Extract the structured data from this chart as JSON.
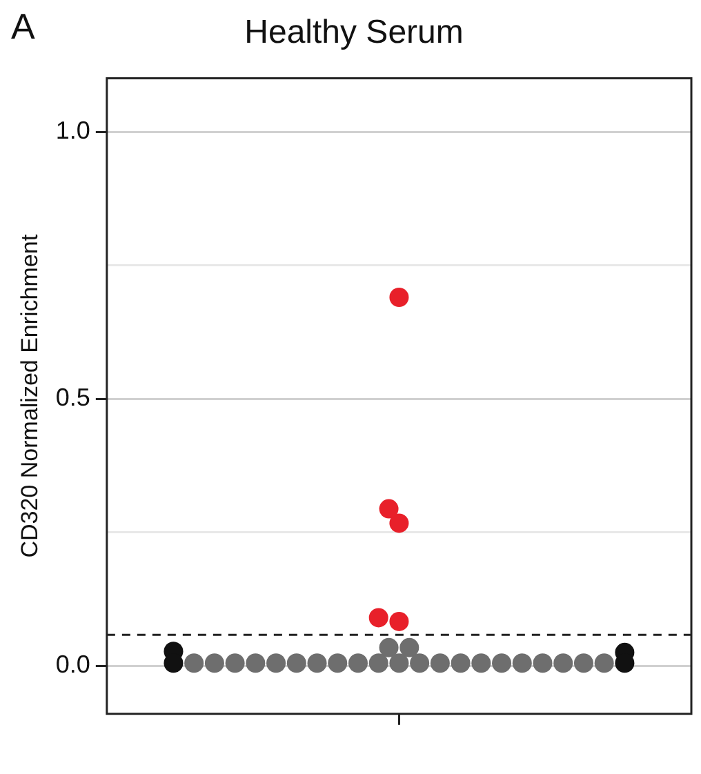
{
  "chart_data": {
    "type": "scatter",
    "title": "Healthy Serum",
    "ylabel": "CD320 Normalized Enrichment",
    "annotations": [
      "A"
    ],
    "categories": [
      null,
      null,
      null,
      null,
      null,
      null,
      null,
      null,
      null,
      null,
      null,
      null,
      null,
      null,
      null,
      null,
      null,
      null,
      null,
      null,
      null,
      null,
      null,
      null,
      null,
      null,
      null,
      null,
      null,
      null,
      null,
      null,
      null,
      null,
      null,
      null,
      null,
      null,
      null,
      null,
      null,
      null,
      null,
      null,
      null,
      null,
      null,
      null,
      null,
      null,
      null,
      null,
      null,
      null,
      null,
      null,
      null
    ],
    "ylim": [
      -0.09,
      1.1
    ],
    "yticks": [
      {
        "value": 0,
        "label": "0.0"
      },
      {
        "value": 0.25,
        "label": null
      },
      {
        "value": 0.5,
        "label": "0.5"
      },
      {
        "value": 0.75,
        "label": null
      },
      {
        "value": 1,
        "label": "1.0"
      }
    ],
    "tick_labels": "y",
    "grid": "y",
    "legend": false,
    "marker": "circle",
    "ref_lines": [
      {
        "axis": "y",
        "value": 0.058,
        "line_style": "dashed",
        "color": "#222222"
      }
    ],
    "series": [
      {
        "color": "#6e6e6e",
        "values": [
          null,
          null,
          null,
          null,
          null,
          null,
          null,
          null,
          0.005,
          null,
          0.005,
          null,
          0.005,
          null,
          0.005,
          null,
          0.005,
          null,
          0.005,
          null,
          0.005,
          null,
          0.005,
          null,
          0.005,
          null,
          0.005,
          0.034,
          0.005,
          0.034,
          0.005,
          null,
          0.005,
          null,
          0.005,
          null,
          0.005,
          null,
          0.005,
          null,
          0.005,
          null,
          0.005,
          null,
          0.005,
          null,
          0.005,
          null,
          0.005,
          null,
          null,
          null,
          null,
          null,
          null,
          null,
          null
        ]
      },
      {
        "color": "#111111",
        "values": [
          null,
          null,
          null,
          null,
          null,
          null,
          0.005,
          null,
          null,
          null,
          null,
          null,
          null,
          null,
          null,
          null,
          null,
          null,
          null,
          null,
          null,
          null,
          null,
          null,
          null,
          null,
          null,
          null,
          null,
          null,
          null,
          null,
          null,
          null,
          null,
          null,
          null,
          null,
          null,
          null,
          null,
          null,
          null,
          null,
          null,
          null,
          null,
          null,
          null,
          null,
          0.005,
          null,
          null,
          null,
          null,
          null,
          null
        ]
      },
      {
        "color": "#111111",
        "values": [
          null,
          null,
          null,
          null,
          null,
          null,
          0.027,
          null,
          null,
          null,
          null,
          null,
          null,
          null,
          null,
          null,
          null,
          null,
          null,
          null,
          null,
          null,
          null,
          null,
          null,
          null,
          null,
          null,
          null,
          null,
          null,
          null,
          null,
          null,
          null,
          null,
          null,
          null,
          null,
          null,
          null,
          null,
          null,
          null,
          null,
          null,
          null,
          null,
          null,
          null,
          0.025,
          null,
          null,
          null,
          null,
          null,
          null
        ]
      },
      {
        "color": "#e8202a",
        "values": [
          null,
          null,
          null,
          null,
          null,
          null,
          null,
          null,
          null,
          null,
          null,
          null,
          null,
          null,
          null,
          null,
          null,
          null,
          null,
          null,
          null,
          null,
          null,
          null,
          null,
          null,
          0.09,
          0.294,
          0.69,
          null,
          null,
          null,
          null,
          null,
          null,
          null,
          null,
          null,
          null,
          null,
          null,
          null,
          null,
          null,
          null,
          null,
          null,
          null,
          null,
          null,
          null,
          null,
          null,
          null,
          null,
          null,
          null
        ]
      },
      {
        "color": "#e8202a",
        "values": [
          null,
          null,
          null,
          null,
          null,
          null,
          null,
          null,
          null,
          null,
          null,
          null,
          null,
          null,
          null,
          null,
          null,
          null,
          null,
          null,
          null,
          null,
          null,
          null,
          null,
          null,
          null,
          null,
          0.267,
          null,
          null,
          null,
          null,
          null,
          null,
          null,
          null,
          null,
          null,
          null,
          null,
          null,
          null,
          null,
          null,
          null,
          null,
          null,
          null,
          null,
          null,
          null,
          null,
          null,
          null,
          null,
          null
        ]
      },
      {
        "color": "#e8202a",
        "values": [
          null,
          null,
          null,
          null,
          null,
          null,
          null,
          null,
          null,
          null,
          null,
          null,
          null,
          null,
          null,
          null,
          null,
          null,
          null,
          null,
          null,
          null,
          null,
          null,
          null,
          null,
          null,
          null,
          0.083,
          null,
          null,
          null,
          null,
          null,
          null,
          null,
          null,
          null,
          null,
          null,
          null,
          null,
          null,
          null,
          null,
          null,
          null,
          null,
          null,
          null,
          null,
          null,
          null,
          null,
          null,
          null,
          null
        ]
      }
    ]
  }
}
